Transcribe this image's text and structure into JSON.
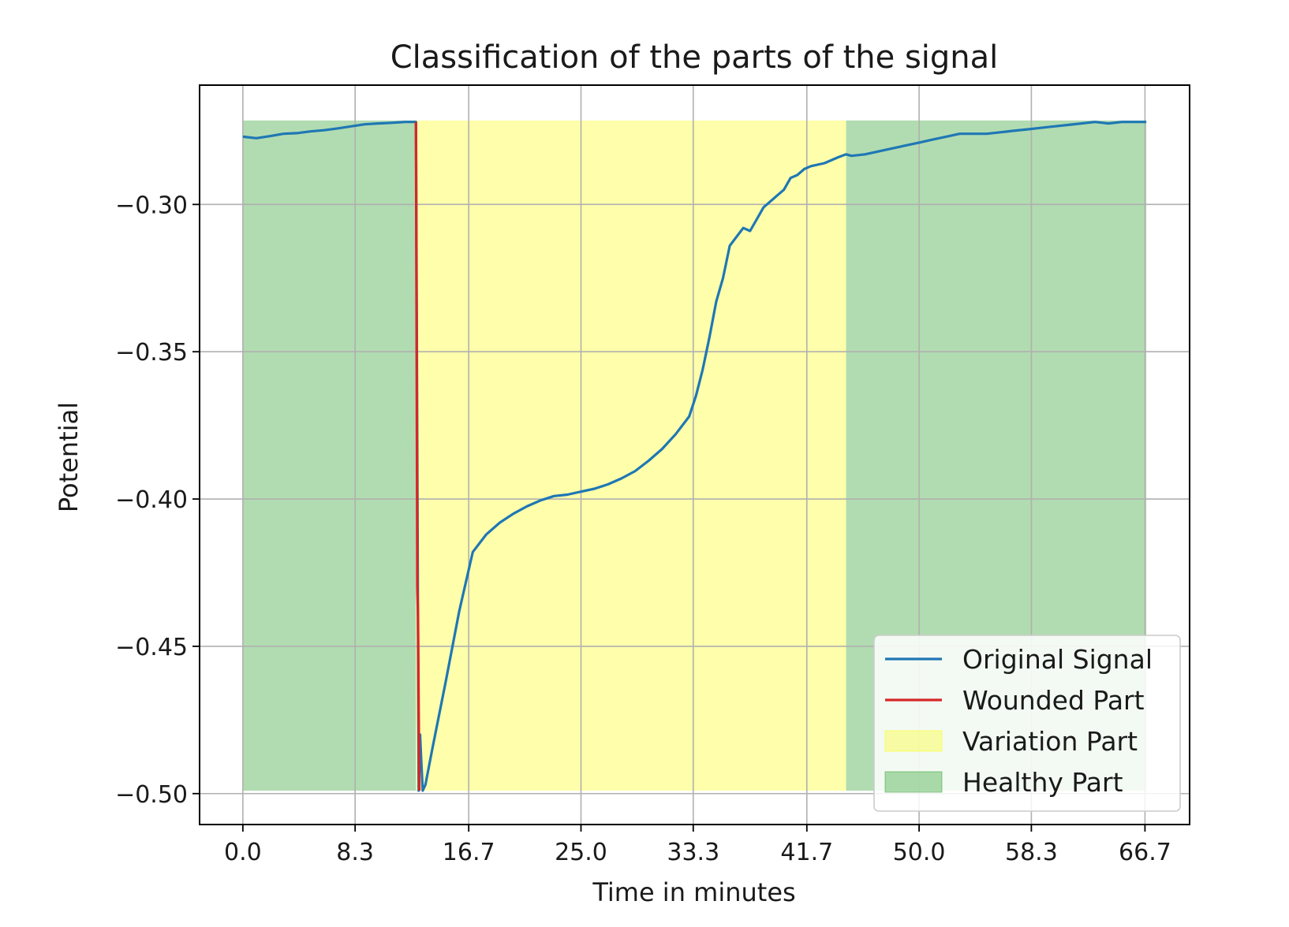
{
  "chart_data": {
    "type": "line",
    "title": "Classification of the parts of the signal",
    "xlabel": "Time in minutes",
    "ylabel": "Potential",
    "xlim": [
      -3.2,
      70.0
    ],
    "ylim": [
      -0.5105,
      -0.2595
    ],
    "xticks": [
      0.0,
      8.3,
      16.7,
      25.0,
      33.3,
      41.7,
      50.0,
      58.3,
      66.7
    ],
    "xtick_labels": [
      "0.0",
      "8.3",
      "16.7",
      "25.0",
      "33.3",
      "41.7",
      "50.0",
      "58.3",
      "66.7"
    ],
    "yticks": [
      -0.3,
      -0.35,
      -0.4,
      -0.45,
      -0.5
    ],
    "ytick_labels": [
      "−0.30",
      "−0.35",
      "−0.40",
      "−0.45",
      "−0.50"
    ],
    "grid": true,
    "legend_position": "lower right",
    "regions": [
      {
        "name": "Healthy Part",
        "x0": 0.0,
        "x1": 12.8,
        "y0": -0.499,
        "y1": -0.2715,
        "color": "#2ca02c",
        "opacity": 0.37
      },
      {
        "name": "Variation Part",
        "x0": 12.8,
        "x1": 44.6,
        "y0": -0.499,
        "y1": -0.2715,
        "color": "#ffff00",
        "opacity": 0.33
      },
      {
        "name": "Healthy Part",
        "x0": 44.6,
        "x1": 66.8,
        "y0": -0.499,
        "y1": -0.2715,
        "color": "#2ca02c",
        "opacity": 0.37
      }
    ],
    "series": [
      {
        "name": "Original Signal",
        "color": "#1f77b4",
        "x": [
          0.0,
          1.0,
          2.0,
          3.0,
          4.0,
          5.0,
          6.0,
          7.0,
          8.0,
          9.0,
          10.0,
          11.0,
          12.0,
          12.8,
          13.0,
          13.1,
          13.2,
          13.3,
          13.5,
          14.0,
          15.0,
          16.0,
          17.0,
          18.0,
          19.0,
          20.0,
          21.0,
          22.0,
          23.0,
          24.0,
          25.0,
          26.0,
          27.0,
          28.0,
          29.0,
          30.0,
          31.0,
          32.0,
          33.0,
          33.5,
          34.0,
          34.5,
          35.0,
          35.5,
          36.0,
          36.5,
          37.0,
          37.5,
          38.0,
          38.5,
          39.0,
          39.5,
          40.0,
          40.5,
          41.0,
          41.5,
          42.0,
          43.0,
          44.0,
          44.6,
          45.0,
          46.0,
          47.0,
          48.0,
          49.0,
          50.0,
          51.0,
          52.0,
          53.0,
          54.0,
          55.0,
          56.0,
          57.0,
          58.0,
          59.0,
          60.0,
          61.0,
          62.0,
          63.0,
          64.0,
          65.0,
          66.0,
          66.8
        ],
        "y": [
          -0.277,
          -0.2775,
          -0.2768,
          -0.276,
          -0.2758,
          -0.2752,
          -0.2748,
          -0.2742,
          -0.2735,
          -0.2728,
          -0.2725,
          -0.2723,
          -0.272,
          -0.272,
          -0.499,
          -0.48,
          -0.49,
          -0.499,
          -0.497,
          -0.485,
          -0.462,
          -0.438,
          -0.418,
          -0.412,
          -0.408,
          -0.405,
          -0.4025,
          -0.4005,
          -0.399,
          -0.3985,
          -0.3975,
          -0.3965,
          -0.395,
          -0.393,
          -0.3905,
          -0.387,
          -0.383,
          -0.378,
          -0.372,
          -0.365,
          -0.356,
          -0.345,
          -0.333,
          -0.325,
          -0.314,
          -0.311,
          -0.308,
          -0.309,
          -0.305,
          -0.301,
          -0.299,
          -0.297,
          -0.295,
          -0.291,
          -0.29,
          -0.288,
          -0.287,
          -0.286,
          -0.284,
          -0.283,
          -0.2835,
          -0.283,
          -0.282,
          -0.281,
          -0.28,
          -0.279,
          -0.278,
          -0.277,
          -0.276,
          -0.276,
          -0.276,
          -0.2755,
          -0.275,
          -0.2745,
          -0.274,
          -0.2735,
          -0.273,
          -0.2725,
          -0.272,
          -0.2725,
          -0.272,
          -0.272,
          -0.272
        ]
      },
      {
        "name": "Wounded Part",
        "color": "#d62728",
        "x": [
          12.8,
          12.85,
          12.9,
          12.95,
          13.0,
          13.05
        ],
        "y": [
          -0.272,
          -0.35,
          -0.43,
          -0.44,
          -0.47,
          -0.499
        ]
      }
    ],
    "legend": [
      {
        "label": "Original Signal",
        "kind": "line",
        "color": "#1f77b4"
      },
      {
        "label": "Wounded Part",
        "kind": "line",
        "color": "#d62728"
      },
      {
        "label": "Variation Part",
        "kind": "patch",
        "color": "#ffff00",
        "opacity": 0.33
      },
      {
        "label": "Healthy Part",
        "kind": "patch",
        "color": "#2ca02c",
        "opacity": 0.37
      }
    ]
  }
}
